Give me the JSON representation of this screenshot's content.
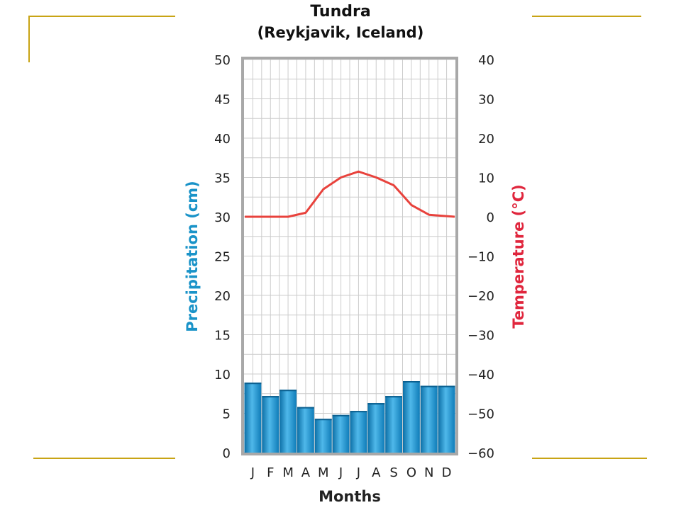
{
  "chart_data": {
    "type": "bar",
    "title": "Tundra",
    "subtitle": "(Reykjavik, Iceland)",
    "xlabel": "Months",
    "categories": [
      "J",
      "F",
      "M",
      "A",
      "M",
      "J",
      "J",
      "A",
      "S",
      "O",
      "N",
      "D"
    ],
    "y_left": {
      "label": "Precipitation (cm)",
      "range": [
        0,
        50
      ],
      "ticks": [
        "0",
        "5",
        "10",
        "15",
        "20",
        "25",
        "30",
        "35",
        "40",
        "45",
        "50"
      ],
      "color": "#1a93c8"
    },
    "y_right": {
      "label": "Temperature (°C)",
      "range": [
        -60,
        40
      ],
      "ticks": [
        "−60",
        "−50",
        "−40",
        "−30",
        "−20",
        "−10",
        "0",
        "10",
        "20",
        "30",
        "40"
      ],
      "color": "#e0263d"
    },
    "series": [
      {
        "type": "bar",
        "axis": "left",
        "values": [
          8.9,
          7.2,
          8.0,
          5.8,
          4.3,
          4.8,
          5.3,
          6.3,
          7.2,
          9.1,
          8.5,
          8.5
        ]
      },
      {
        "type": "line",
        "axis": "right",
        "values": [
          0,
          0,
          0,
          1,
          7,
          10,
          11.5,
          10,
          8,
          3,
          0.5,
          0
        ]
      }
    ],
    "grid": true,
    "colors": {
      "bar": "#1a93c8",
      "line": "#e8423c",
      "frame": "#c8a415",
      "plot_border": "#a8a8a8",
      "grid": "#cccccc"
    }
  }
}
